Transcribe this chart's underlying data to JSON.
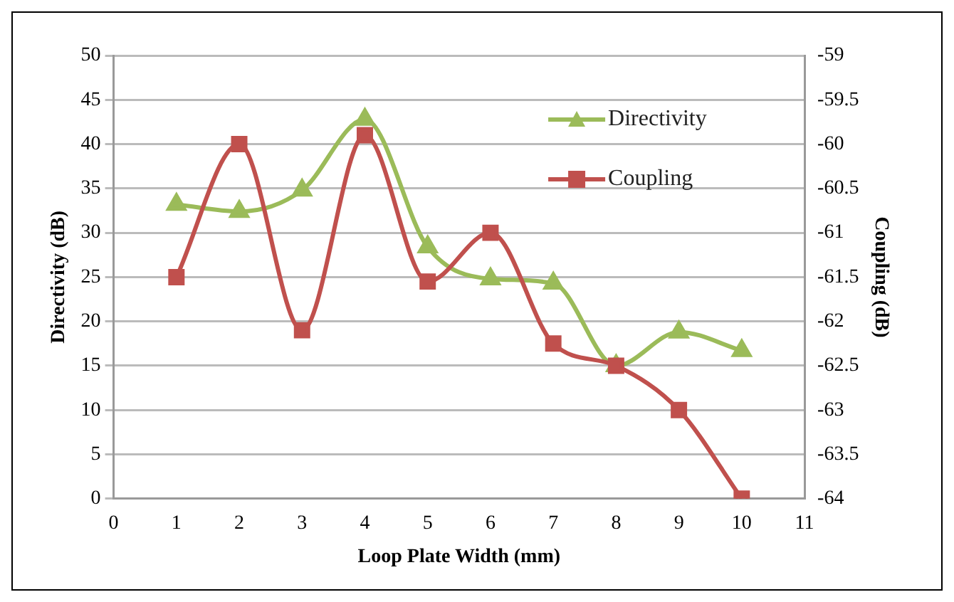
{
  "chart_data": {
    "type": "line",
    "xlabel": "Loop Plate Width (mm)",
    "ylabel": "Directivity (dB)",
    "y2label": "Coupling (dB)",
    "x": [
      1,
      2,
      3,
      4,
      5,
      6,
      7,
      8,
      9,
      10
    ],
    "series": [
      {
        "name": "Directivity",
        "color": "#9bbb59",
        "marker": "triangle",
        "values": [
          33.2,
          32.4,
          34.8,
          42.8,
          28.4,
          24.8,
          24.3,
          15,
          18.8,
          16.7
        ]
      },
      {
        "name": "Coupling",
        "color": "#c0504d",
        "marker": "square",
        "axis": "y2",
        "values": [
          -61.5,
          -60.0,
          -62.1,
          -59.9,
          -61.55,
          -61.0,
          -62.25,
          -62.5,
          -63.0,
          -64.0
        ]
      }
    ],
    "xlim": [
      0,
      11
    ],
    "xticks": [
      0,
      1,
      2,
      3,
      4,
      5,
      6,
      7,
      8,
      9,
      10,
      11
    ],
    "ylim": [
      0,
      50
    ],
    "yticks": [
      0,
      5,
      10,
      15,
      20,
      25,
      30,
      35,
      40,
      45,
      50
    ],
    "y2lim": [
      -64,
      -59
    ],
    "y2ticks": [
      -64,
      -63.5,
      -63,
      -62.5,
      -62,
      -61.5,
      -61,
      -60.5,
      -60,
      -59.5,
      -59
    ],
    "grid": "y",
    "legend": "top right",
    "line_style": "solid"
  }
}
